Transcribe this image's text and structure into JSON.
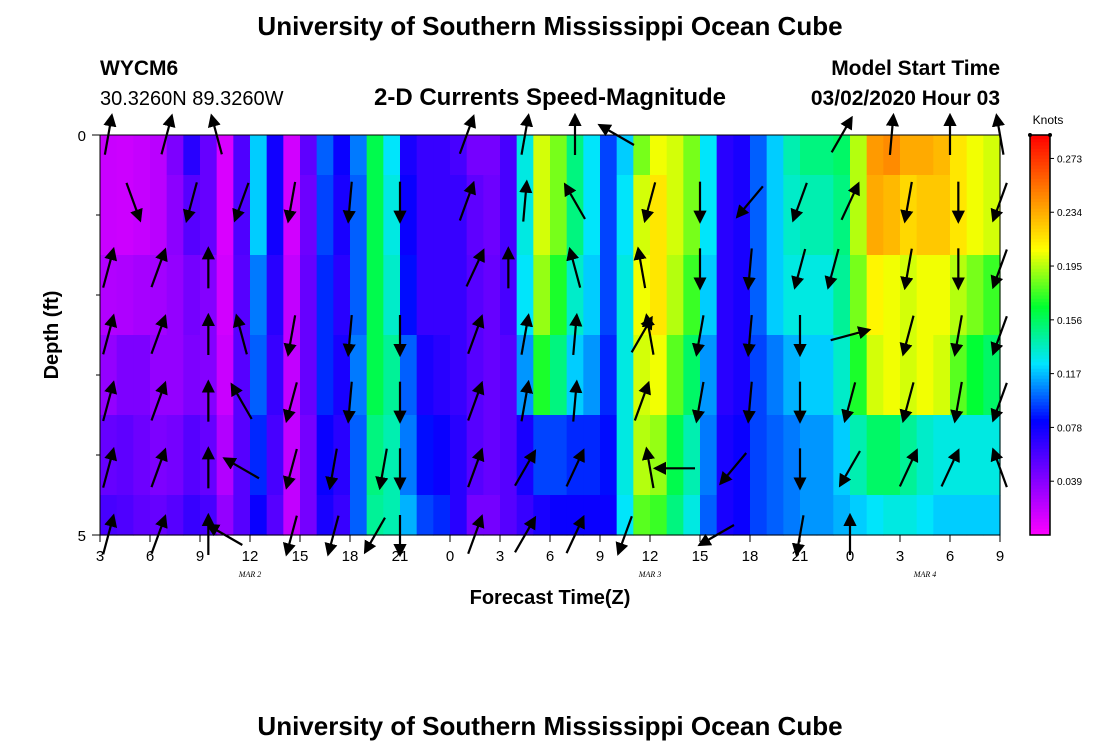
{
  "chart_data": {
    "type": "heatmap",
    "title": "University of Southern Mississippi Ocean Cube",
    "footer_title": "University of Southern Mississippi Ocean Cube",
    "station_id": "WYCM6",
    "location": "30.3260N 89.3260W",
    "subtitle": "2-D Currents Speed-Magnitude",
    "model_start_label": "Model Start Time",
    "model_start_value": "03/02/2020 Hour 03",
    "xlabel": "Forecast Time(Z)",
    "ylabel": "Depth (ft)",
    "x_range_hours": [
      0,
      54
    ],
    "x_tick_labels": [
      "3",
      "6",
      "9",
      "12",
      "15",
      "18",
      "21",
      "0",
      "3",
      "6",
      "9",
      "12",
      "15",
      "18",
      "21",
      "0",
      "3",
      "6",
      "9"
    ],
    "date_labels": [
      {
        "text": "MAR 2",
        "at_hour": 9
      },
      {
        "text": "MAR 3",
        "at_hour": 33
      },
      {
        "text": "MAR 4",
        "at_hour": 49.5
      }
    ],
    "y_range": [
      0,
      5
    ],
    "y_tick_labels": [
      "0",
      "5"
    ],
    "y_minor_ticks": [
      1,
      2,
      3,
      4
    ],
    "depth_levels": 5,
    "hours_per_column": 1,
    "colorbar": {
      "units": "Knots",
      "vmin": 0.0,
      "vmax": 0.29,
      "tick_values": [
        "0.039",
        "0.078",
        "0.117",
        "0.156",
        "0.195",
        "0.234",
        "0.273"
      ],
      "stops": [
        "#ff00ff",
        "#8000ff",
        "#0000ff",
        "#00e5ff",
        "#00ff30",
        "#ffff00",
        "#ff8000",
        "#ff0000"
      ]
    },
    "speed_keyframes": {
      "hours": [
        0,
        1,
        2,
        3,
        4,
        5,
        6,
        6.5,
        7,
        8,
        9,
        10,
        11,
        12,
        13,
        14,
        15,
        16,
        17,
        18,
        19,
        20,
        21,
        22,
        23,
        24,
        25,
        26,
        27,
        28,
        29,
        30,
        31,
        32,
        33,
        34,
        35,
        36,
        37,
        38,
        39,
        40,
        41,
        42,
        43,
        44,
        45,
        46,
        47,
        48,
        49,
        50,
        51,
        52,
        53,
        54
      ],
      "levels": [
        [
          0.02,
          0.015,
          0.018,
          0.02,
          0.025,
          0.06,
          0.08,
          0.05,
          0.02,
          0.005,
          0.11,
          0.13,
          0.025,
          0.005,
          0.1,
          0.1,
          0.06,
          0.15,
          0.17,
          0.08,
          0.07,
          0.06,
          0.07,
          0.05,
          0.04,
          0.05,
          0.07,
          0.19,
          0.21,
          0.16,
          0.14,
          0.11,
          0.08,
          0.16,
          0.21,
          0.2,
          0.2,
          0.17,
          0.08,
          0.06,
          0.09,
          0.11,
          0.13,
          0.15,
          0.15,
          0.15,
          0.16,
          0.23,
          0.25,
          0.24,
          0.23,
          0.24,
          0.22,
          0.21,
          0.2,
          0.2
        ],
        [
          0.02,
          0.015,
          0.018,
          0.02,
          0.025,
          0.05,
          0.06,
          0.05,
          0.02,
          0.005,
          0.11,
          0.13,
          0.025,
          0.005,
          0.09,
          0.1,
          0.05,
          0.15,
          0.17,
          0.09,
          0.07,
          0.06,
          0.07,
          0.06,
          0.045,
          0.05,
          0.07,
          0.19,
          0.21,
          0.16,
          0.14,
          0.11,
          0.08,
          0.17,
          0.23,
          0.2,
          0.2,
          0.17,
          0.08,
          0.06,
          0.09,
          0.11,
          0.13,
          0.14,
          0.14,
          0.14,
          0.16,
          0.23,
          0.24,
          0.22,
          0.22,
          0.23,
          0.22,
          0.21,
          0.2,
          0.2
        ],
        [
          0.025,
          0.025,
          0.028,
          0.03,
          0.03,
          0.04,
          0.05,
          0.04,
          0.02,
          0.01,
          0.1,
          0.11,
          0.03,
          0.01,
          0.09,
          0.09,
          0.05,
          0.15,
          0.17,
          0.1,
          0.07,
          0.06,
          0.07,
          0.06,
          0.05,
          0.05,
          0.07,
          0.18,
          0.2,
          0.14,
          0.13,
          0.11,
          0.08,
          0.18,
          0.23,
          0.2,
          0.19,
          0.16,
          0.08,
          0.06,
          0.09,
          0.11,
          0.13,
          0.13,
          0.13,
          0.13,
          0.16,
          0.21,
          0.21,
          0.2,
          0.2,
          0.21,
          0.2,
          0.19,
          0.18,
          0.17
        ],
        [
          0.03,
          0.04,
          0.045,
          0.04,
          0.03,
          0.04,
          0.045,
          0.04,
          0.025,
          0.01,
          0.1,
          0.1,
          0.03,
          0.01,
          0.09,
          0.09,
          0.06,
          0.15,
          0.17,
          0.12,
          0.08,
          0.07,
          0.07,
          0.06,
          0.05,
          0.05,
          0.06,
          0.16,
          0.18,
          0.12,
          0.12,
          0.1,
          0.08,
          0.18,
          0.22,
          0.19,
          0.17,
          0.14,
          0.08,
          0.06,
          0.09,
          0.1,
          0.11,
          0.12,
          0.12,
          0.12,
          0.15,
          0.19,
          0.21,
          0.2,
          0.2,
          0.21,
          0.19,
          0.17,
          0.16,
          0.15
        ],
        [
          0.045,
          0.055,
          0.05,
          0.045,
          0.04,
          0.05,
          0.06,
          0.05,
          0.03,
          0.02,
          0.09,
          0.09,
          0.03,
          0.01,
          0.08,
          0.08,
          0.06,
          0.14,
          0.16,
          0.12,
          0.09,
          0.08,
          0.08,
          0.06,
          0.05,
          0.05,
          0.06,
          0.09,
          0.1,
          0.09,
          0.09,
          0.09,
          0.08,
          0.18,
          0.21,
          0.17,
          0.15,
          0.13,
          0.08,
          0.07,
          0.09,
          0.1,
          0.1,
          0.11,
          0.11,
          0.11,
          0.13,
          0.15,
          0.16,
          0.15,
          0.14,
          0.13,
          0.13,
          0.13,
          0.13,
          0.13
        ],
        [
          0.06,
          0.06,
          0.055,
          0.05,
          0.05,
          0.06,
          0.07,
          0.06,
          0.04,
          0.03,
          0.08,
          0.08,
          0.03,
          0.01,
          0.08,
          0.07,
          0.06,
          0.14,
          0.15,
          0.13,
          0.1,
          0.09,
          0.09,
          0.05,
          0.04,
          0.05,
          0.06,
          0.07,
          0.08,
          0.08,
          0.08,
          0.08,
          0.08,
          0.17,
          0.19,
          0.16,
          0.14,
          0.12,
          0.08,
          0.07,
          0.09,
          0.1,
          0.1,
          0.11,
          0.11,
          0.11,
          0.12,
          0.12,
          0.13,
          0.13,
          0.13,
          0.12,
          0.12,
          0.12,
          0.12,
          0.12
        ]
      ]
    },
    "vector_rows": [
      {
        "depth": 0,
        "vectors": [
          [
            0.5,
            10
          ],
          [
            4.0,
            15
          ],
          [
            7.0,
            -15
          ],
          [
            22.0,
            20
          ],
          [
            25.5,
            10
          ],
          [
            28.5,
            0
          ],
          [
            31.0,
            -60
          ],
          [
            44.5,
            30
          ],
          [
            47.5,
            5
          ],
          [
            51.0,
            0
          ],
          [
            54.0,
            -10
          ]
        ]
      },
      {
        "depth": 1,
        "vectors": [
          [
            2.0,
            160
          ],
          [
            5.5,
            -165
          ],
          [
            8.5,
            -160
          ],
          [
            11.5,
            -170
          ],
          [
            15.0,
            -175
          ],
          [
            18.0,
            180
          ],
          [
            22.0,
            20
          ],
          [
            25.5,
            5
          ],
          [
            28.5,
            -30
          ],
          [
            33.0,
            -165
          ],
          [
            36.0,
            -180
          ],
          [
            39.0,
            -140
          ],
          [
            42.0,
            -160
          ],
          [
            45.0,
            25
          ],
          [
            48.5,
            -170
          ],
          [
            51.5,
            -180
          ],
          [
            54.0,
            -160
          ]
        ]
      },
      {
        "depth": 2,
        "vectors": [
          [
            0.5,
            15
          ],
          [
            3.5,
            20
          ],
          [
            6.5,
            0
          ],
          [
            22.5,
            25
          ],
          [
            24.5,
            0
          ],
          [
            28.5,
            -15
          ],
          [
            32.5,
            -10
          ],
          [
            36.0,
            -180
          ],
          [
            39.0,
            -175
          ],
          [
            42.0,
            -165
          ],
          [
            44.0,
            -165
          ],
          [
            48.5,
            -170
          ],
          [
            51.5,
            -180
          ],
          [
            54.0,
            -160
          ]
        ]
      },
      {
        "depth": 3,
        "vectors": [
          [
            0.5,
            15
          ],
          [
            3.5,
            20
          ],
          [
            6.5,
            0
          ],
          [
            8.5,
            -15
          ],
          [
            11.5,
            -170
          ],
          [
            15.0,
            -175
          ],
          [
            18.0,
            180
          ],
          [
            22.5,
            20
          ],
          [
            25.5,
            10
          ],
          [
            28.5,
            5
          ],
          [
            32.5,
            30
          ],
          [
            33.0,
            -10
          ],
          [
            36.0,
            -170
          ],
          [
            39.0,
            -175
          ],
          [
            42.0,
            -180
          ],
          [
            45.0,
            75
          ],
          [
            48.5,
            -165
          ],
          [
            51.5,
            -170
          ],
          [
            54.0,
            -160
          ]
        ]
      },
      {
        "depth": 4,
        "vectors": [
          [
            0.5,
            15
          ],
          [
            3.5,
            20
          ],
          [
            6.5,
            0
          ],
          [
            8.5,
            -30
          ],
          [
            11.5,
            -165
          ],
          [
            15.0,
            -175
          ],
          [
            18.0,
            -180
          ],
          [
            22.5,
            20
          ],
          [
            25.5,
            10
          ],
          [
            28.5,
            5
          ],
          [
            32.5,
            20
          ],
          [
            36.0,
            -170
          ],
          [
            39.0,
            -175
          ],
          [
            42.0,
            -180
          ],
          [
            45.0,
            -165
          ],
          [
            48.5,
            -165
          ],
          [
            51.5,
            -170
          ],
          [
            54.0,
            -160
          ]
        ]
      },
      {
        "depth": 5,
        "vectors": [
          [
            0.5,
            15
          ],
          [
            3.5,
            20
          ],
          [
            6.5,
            0
          ],
          [
            8.5,
            -60
          ],
          [
            11.5,
            -165
          ],
          [
            14.0,
            -170
          ],
          [
            17.0,
            -170
          ],
          [
            18.0,
            -180
          ],
          [
            22.5,
            20
          ],
          [
            25.5,
            30
          ],
          [
            28.5,
            25
          ],
          [
            33.0,
            -10
          ],
          [
            34.5,
            -90
          ],
          [
            38.0,
            -140
          ],
          [
            42.0,
            -180
          ],
          [
            45.0,
            -150
          ],
          [
            48.5,
            25
          ],
          [
            51.0,
            25
          ],
          [
            54.0,
            -20
          ]
        ]
      },
      {
        "depth": 6,
        "vectors": [
          [
            0.5,
            15
          ],
          [
            3.5,
            20
          ],
          [
            6.5,
            0
          ],
          [
            7.5,
            -60
          ],
          [
            11.5,
            -165
          ],
          [
            14.0,
            -165
          ],
          [
            16.5,
            -150
          ],
          [
            18.0,
            -180
          ],
          [
            22.5,
            20
          ],
          [
            25.5,
            30
          ],
          [
            28.5,
            25
          ],
          [
            31.5,
            -160
          ],
          [
            37.0,
            -120
          ],
          [
            42.0,
            -170
          ],
          [
            45.0,
            0
          ]
        ]
      }
    ],
    "grid": false
  }
}
